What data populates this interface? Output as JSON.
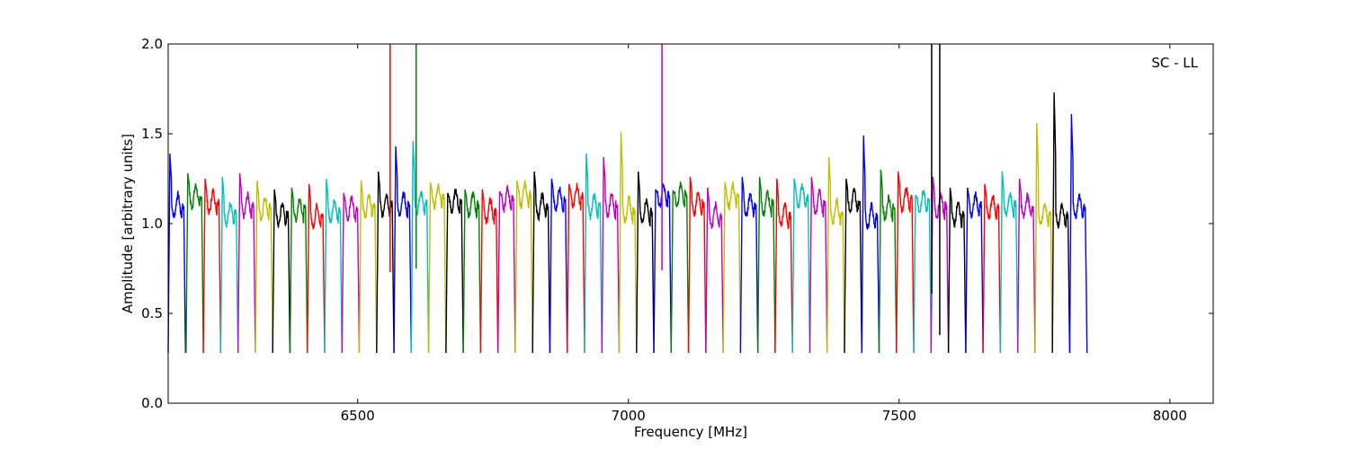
{
  "chart_data": {
    "type": "line",
    "title": "",
    "annotation": "SC - LL",
    "xlabel": "Frequency [MHz]",
    "ylabel": "Amplitude [arbitrary units]",
    "xlim": [
      6150,
      8080
    ],
    "ylim": [
      0.0,
      2.0
    ],
    "xticks": [
      6500,
      7000,
      7500,
      8000
    ],
    "xtick_labels": [
      "6500",
      "7000",
      "7500",
      "8000"
    ],
    "yticks": [
      0.0,
      0.5,
      1.0,
      1.5,
      2.0
    ],
    "ytick_labels": [
      "0.0",
      "0.5",
      "1.0",
      "1.5",
      "2.0"
    ],
    "grid": false,
    "legend": "none",
    "palette": [
      "#0000ff",
      "#008000",
      "#ff0000",
      "#00bfbf",
      "#bf00bf",
      "#bfbf00",
      "#000000"
    ],
    "channel_width_mhz": 32,
    "channels": [
      {
        "f0": 6150,
        "color": "#0000ff",
        "peak": 1.39
      },
      {
        "f0": 6183,
        "color": "#008000",
        "peak": 1.28
      },
      {
        "f0": 6215,
        "color": "#ff0000",
        "peak": 1.25
      },
      {
        "f0": 6247,
        "color": "#00bfbf",
        "peak": 1.26
      },
      {
        "f0": 6279,
        "color": "#bf00bf",
        "peak": 1.28
      },
      {
        "f0": 6311,
        "color": "#bfbf00",
        "peak": 1.24
      },
      {
        "f0": 6343,
        "color": "#000000",
        "peak": 1.19
      },
      {
        "f0": 6375,
        "color": "#008000",
        "peak": 1.2
      },
      {
        "f0": 6407,
        "color": "#ff0000",
        "peak": 1.22
      },
      {
        "f0": 6439,
        "color": "#00bfbf",
        "peak": 1.25
      },
      {
        "f0": 6471,
        "color": "#bf00bf",
        "peak": 1.17
      },
      {
        "f0": 6503,
        "color": "#bfbf00",
        "peak": 1.24
      },
      {
        "f0": 6535,
        "color": "#000000",
        "peak": 1.29
      },
      {
        "f0": 6567,
        "color": "#0000ff",
        "peak": 1.43
      },
      {
        "f0": 6599,
        "color": "#00bfbf",
        "peak": 1.46
      },
      {
        "f0": 6631,
        "color": "#bfbf00",
        "peak": 1.23
      },
      {
        "f0": 6663,
        "color": "#000000",
        "peak": 1.17
      },
      {
        "f0": 6695,
        "color": "#008000",
        "peak": 1.19
      },
      {
        "f0": 6727,
        "color": "#ff0000",
        "peak": 1.19
      },
      {
        "f0": 6759,
        "color": "#bf00bf",
        "peak": 1.18
      },
      {
        "f0": 6791,
        "color": "#bfbf00",
        "peak": 1.24
      },
      {
        "f0": 6823,
        "color": "#000000",
        "peak": 1.29
      },
      {
        "f0": 6855,
        "color": "#0000ff",
        "peak": 1.25
      },
      {
        "f0": 6887,
        "color": "#ff0000",
        "peak": 1.22
      },
      {
        "f0": 6919,
        "color": "#00bfbf",
        "peak": 1.39
      },
      {
        "f0": 6951,
        "color": "#bf00bf",
        "peak": 1.37
      },
      {
        "f0": 6983,
        "color": "#bfbf00",
        "peak": 1.51
      },
      {
        "f0": 7015,
        "color": "#000000",
        "peak": 1.29
      },
      {
        "f0": 7047,
        "color": "#0000ff",
        "peak": 1.19
      },
      {
        "f0": 7079,
        "color": "#008000",
        "peak": 1.18
      },
      {
        "f0": 7111,
        "color": "#ff0000",
        "peak": 1.26
      },
      {
        "f0": 7143,
        "color": "#bf00bf",
        "peak": 1.2
      },
      {
        "f0": 7175,
        "color": "#bfbf00",
        "peak": 1.23
      },
      {
        "f0": 7207,
        "color": "#0000ff",
        "peak": 1.26
      },
      {
        "f0": 7239,
        "color": "#008000",
        "peak": 1.26
      },
      {
        "f0": 7271,
        "color": "#ff0000",
        "peak": 1.25
      },
      {
        "f0": 7303,
        "color": "#00bfbf",
        "peak": 1.25
      },
      {
        "f0": 7335,
        "color": "#bf00bf",
        "peak": 1.26
      },
      {
        "f0": 7367,
        "color": "#bfbf00",
        "peak": 1.37
      },
      {
        "f0": 7399,
        "color": "#000000",
        "peak": 1.25
      },
      {
        "f0": 7431,
        "color": "#0000ff",
        "peak": 1.49
      },
      {
        "f0": 7463,
        "color": "#008000",
        "peak": 1.3
      },
      {
        "f0": 7495,
        "color": "#ff0000",
        "peak": 1.29
      },
      {
        "f0": 7527,
        "color": "#00bfbf",
        "peak": 1.16
      },
      {
        "f0": 7559,
        "color": "#bf00bf",
        "peak": 1.26
      },
      {
        "f0": 7591,
        "color": "#000000",
        "peak": 1.2
      },
      {
        "f0": 7623,
        "color": "#0000ff",
        "peak": 1.2
      },
      {
        "f0": 7655,
        "color": "#ff0000",
        "peak": 1.22
      },
      {
        "f0": 7687,
        "color": "#00bfbf",
        "peak": 1.29
      },
      {
        "f0": 7719,
        "color": "#bf00bf",
        "peak": 1.25
      },
      {
        "f0": 7751,
        "color": "#bfbf00",
        "peak": 1.56
      },
      {
        "f0": 7783,
        "color": "#000000",
        "peak": 1.73
      },
      {
        "f0": 7815,
        "color": "#0000ff",
        "peak": 1.61
      }
    ],
    "rfi_spikes": [
      {
        "x": 6560,
        "color": "#ff0000",
        "top": 2.0,
        "bottom": 0.73
      },
      {
        "x": 6608,
        "color": "#008000",
        "top": 2.0,
        "bottom": 0.75
      },
      {
        "x": 7062,
        "color": "#bf00bf",
        "top": 2.0,
        "bottom": 0.74
      },
      {
        "x": 7560,
        "color": "#000000",
        "top": 2.0,
        "bottom": 0.61
      },
      {
        "x": 7575,
        "color": "#000000",
        "top": 2.0,
        "bottom": 0.38
      }
    ]
  }
}
